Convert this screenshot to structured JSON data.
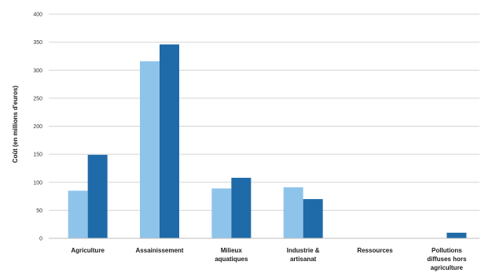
{
  "chart_data": {
    "type": "bar",
    "ylabel": "Coût (en millions d'euros)",
    "ylim": [
      0,
      400
    ],
    "yticks": [
      "0",
      "50",
      "100",
      "150",
      "200",
      "250",
      "300",
      "350",
      "400"
    ],
    "grid": true,
    "categories": [
      [
        "Agriculture"
      ],
      [
        "Assainissement"
      ],
      [
        "Milieux",
        "aquatiques"
      ],
      [
        "Industrie &",
        "artisanat"
      ],
      [
        "Ressources"
      ],
      [
        "Pollutions",
        "diffuses hors",
        "agriculture"
      ]
    ],
    "series": [
      {
        "color": "#8fc4ea",
        "values": [
          85,
          316,
          89,
          91,
          0,
          0
        ]
      },
      {
        "color": "#1f6aa8",
        "values": [
          149,
          346,
          108,
          70,
          0,
          10
        ]
      }
    ]
  }
}
